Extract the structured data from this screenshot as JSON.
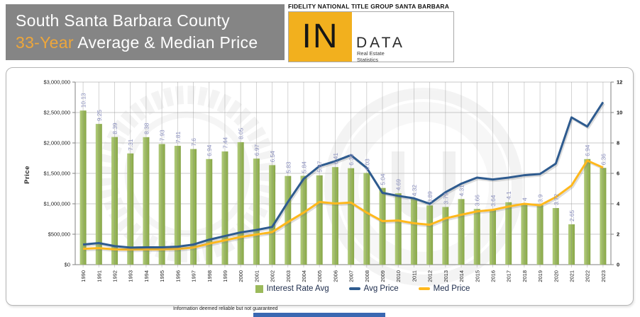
{
  "header": {
    "title_line1": "South Santa Barbara County",
    "title_line2_highlight": "33-Year",
    "title_line2_rest": " Average & Median Price"
  },
  "brand": {
    "top_text": "FIDELITY NATIONAL TITLE GROUP SANTA BARBARA",
    "logo_in": "IN",
    "logo_data": "DATA",
    "logo_sub1": "Real Estate",
    "logo_sub2": "Statistics"
  },
  "chart_data": {
    "type": "combo-bar-line",
    "categories": [
      1990,
      1991,
      1992,
      1993,
      1994,
      1995,
      1996,
      1997,
      1998,
      1999,
      2000,
      2001,
      2002,
      2003,
      2004,
      2005,
      2006,
      2007,
      2008,
      2009,
      2010,
      2011,
      2012,
      2013,
      2014,
      2015,
      2016,
      2017,
      2018,
      2019,
      2020,
      2021,
      2022,
      2023
    ],
    "series": [
      {
        "name": "Interest Rate Avg",
        "type": "bar",
        "axis": "right",
        "color": "#9BBA5B",
        "values": [
          10.13,
          9.25,
          8.39,
          7.31,
          8.38,
          7.93,
          7.81,
          7.6,
          6.94,
          7.44,
          8.05,
          6.97,
          6.54,
          5.83,
          5.84,
          5.87,
          6.41,
          6.34,
          6.03,
          5.04,
          4.69,
          4.32,
          3.89,
          3.79,
          4.31,
          3.66,
          3.64,
          4.1,
          4,
          3.9,
          3.72,
          2.65,
          6.94,
          6.36
        ]
      },
      {
        "name": "Avg Price",
        "type": "line",
        "axis": "left",
        "color": "#2E5B8F",
        "values": [
          330000,
          355000,
          305000,
          280000,
          285000,
          285000,
          295000,
          330000,
          410000,
          470000,
          530000,
          570000,
          620000,
          1030000,
          1410000,
          1620000,
          1700000,
          1800000,
          1590000,
          1180000,
          1130000,
          1090000,
          1000000,
          1190000,
          1330000,
          1430000,
          1400000,
          1430000,
          1470000,
          1490000,
          1660000,
          2420000,
          2270000,
          2670000
        ]
      },
      {
        "name": "Med Price",
        "type": "line",
        "axis": "left",
        "color": "#FFB81C",
        "values": [
          260000,
          272000,
          252000,
          248000,
          252000,
          252000,
          258000,
          282000,
          345000,
          400000,
          455000,
          495000,
          535000,
          700000,
          855000,
          1030000,
          1005000,
          1020000,
          855000,
          715000,
          725000,
          680000,
          655000,
          760000,
          820000,
          875000,
          900000,
          955000,
          1000000,
          975000,
          1110000,
          1300000,
          1710000,
          1595000
        ]
      }
    ],
    "left_axis": {
      "title": "Price",
      "min": 0,
      "max": 3000000,
      "step": 500000,
      "tick_format": "$#,##0"
    },
    "right_axis": {
      "min": 0,
      "max": 12,
      "step": 2
    },
    "legend_position": "bottom",
    "grid": "both",
    "bar_label_color": "#8B90BE"
  },
  "footer": {
    "disclaimer": "Information deemed reliable but not guaranteed"
  }
}
